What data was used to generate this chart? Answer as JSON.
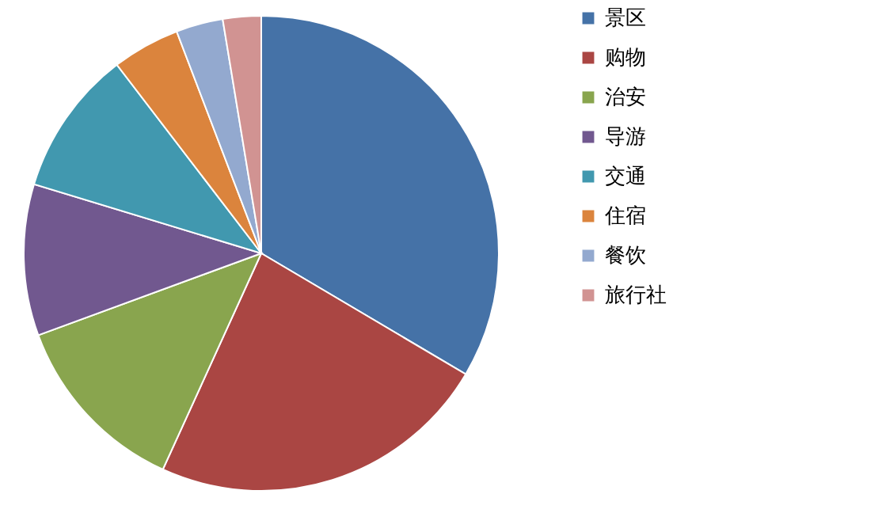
{
  "chart_data": {
    "type": "pie",
    "categories": [
      "景区",
      "购物",
      "治安",
      "导游",
      "交通",
      "住宿",
      "餐饮",
      "旅行社"
    ],
    "values": [
      33.5,
      23.3,
      12.6,
      10.3,
      9.9,
      4.6,
      3.2,
      2.6
    ],
    "colors": [
      "#4572a7",
      "#aa4643",
      "#89a54e",
      "#71588f",
      "#4198af",
      "#db843d",
      "#93a9cf",
      "#d19392"
    ],
    "legend": "right"
  }
}
